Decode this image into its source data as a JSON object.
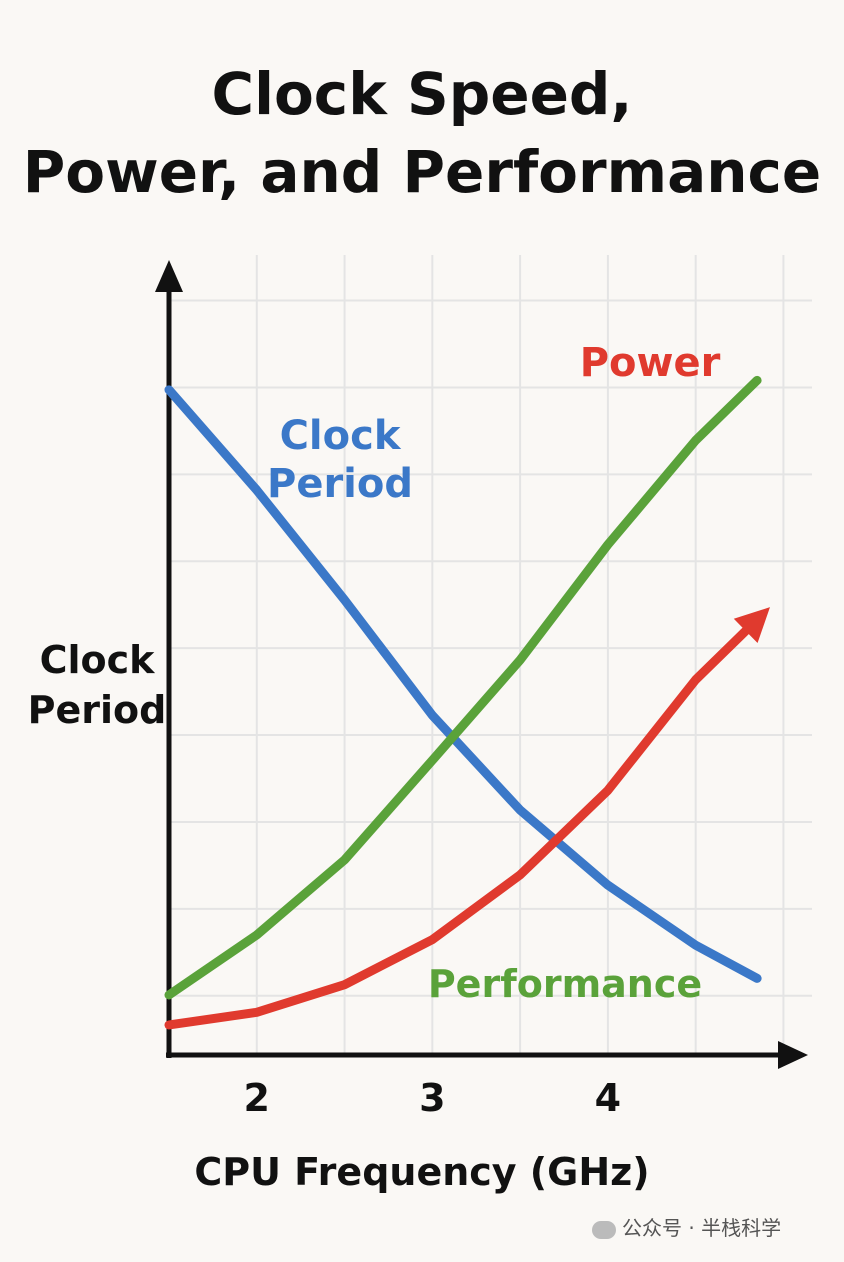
{
  "chart_data": {
    "type": "line",
    "title": [
      "Clock Speed,",
      "Power, and Performance"
    ],
    "xlabel": "CPU Frequency (GHz)",
    "ylabel": "Clock Period",
    "x": [
      1.5,
      2,
      2.5,
      3,
      3.5,
      4,
      4.5,
      4.85
    ],
    "xlim": [
      1.5,
      5.1
    ],
    "xticks": [
      2,
      3,
      4
    ],
    "ylim": [
      0,
      100
    ],
    "grid": true,
    "xgrid": [
      2,
      2.5,
      3,
      3.5,
      4,
      4.5,
      5
    ],
    "ygrid": [
      7.5,
      18.5,
      29.5,
      40.5,
      51.5,
      62.5,
      73.5,
      84.5,
      95.5
    ],
    "series": [
      {
        "name": "Clock Period",
        "color": "#3b78c8",
        "values": [
          84.2,
          71.5,
          57.6,
          43.0,
          31.0,
          21.5,
          13.9,
          9.7
        ]
      },
      {
        "name": "Performance",
        "color": "#5aa23a",
        "values": [
          7.6,
          15.2,
          24.7,
          37.3,
          50.0,
          64.6,
          77.8,
          85.4
        ]
      },
      {
        "name": "Power",
        "color": "#e03a2e",
        "values": [
          3.8,
          5.4,
          8.9,
          14.6,
          22.8,
          33.5,
          47.5,
          55.1
        ],
        "arrow": true
      }
    ],
    "watermark": "公众号 · 半栈科学"
  }
}
